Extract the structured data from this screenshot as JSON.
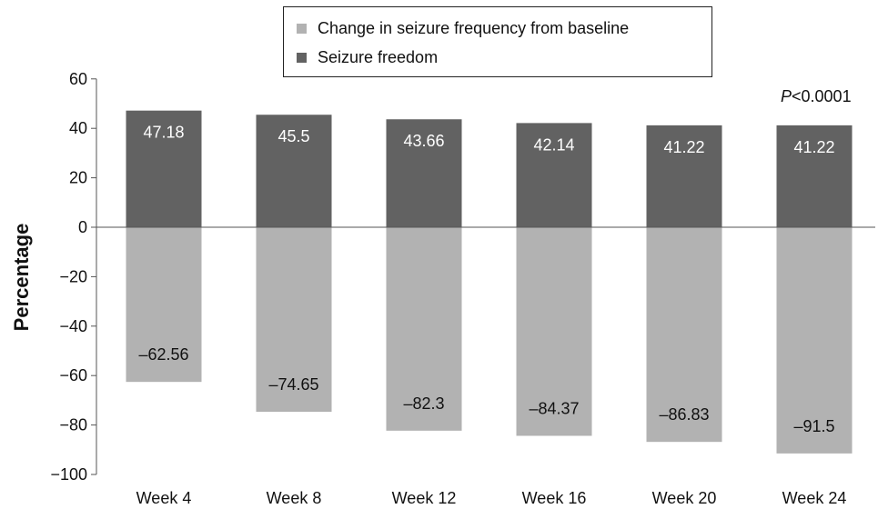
{
  "chart_data": {
    "type": "bar",
    "categories": [
      "Week 4",
      "Week 8",
      "Week 12",
      "Week 16",
      "Week 20",
      "Week 24"
    ],
    "series": [
      {
        "name": "Change in seizure frequency from baseline",
        "color": "#b2b2b2",
        "values": [
          -62.56,
          -74.65,
          -82.3,
          -84.37,
          -86.83,
          -91.5
        ],
        "labels": [
          "–62.56",
          "–74.65",
          "–82.3",
          "–84.37",
          "–86.83",
          "–91.5"
        ]
      },
      {
        "name": "Seizure freedom",
        "color": "#626262",
        "values": [
          47.18,
          45.5,
          43.66,
          42.14,
          41.22,
          41.22
        ],
        "labels": [
          "47.18",
          "45.5",
          "43.66",
          "42.14",
          "41.22",
          "41.22"
        ]
      }
    ],
    "ylabel": "Percentage",
    "xlabel": "",
    "ylim": [
      -100,
      60
    ],
    "yticks": [
      60,
      40,
      20,
      0,
      -20,
      -40,
      -60,
      -80,
      -100
    ],
    "ytick_labels": [
      "60",
      "40",
      "20",
      "0",
      "−20",
      "−40",
      "−60",
      "−80",
      "−100"
    ],
    "annotation": {
      "p_symbol": "P",
      "p_rest": "<0.0001"
    },
    "legend_position": "top",
    "grid": false
  }
}
